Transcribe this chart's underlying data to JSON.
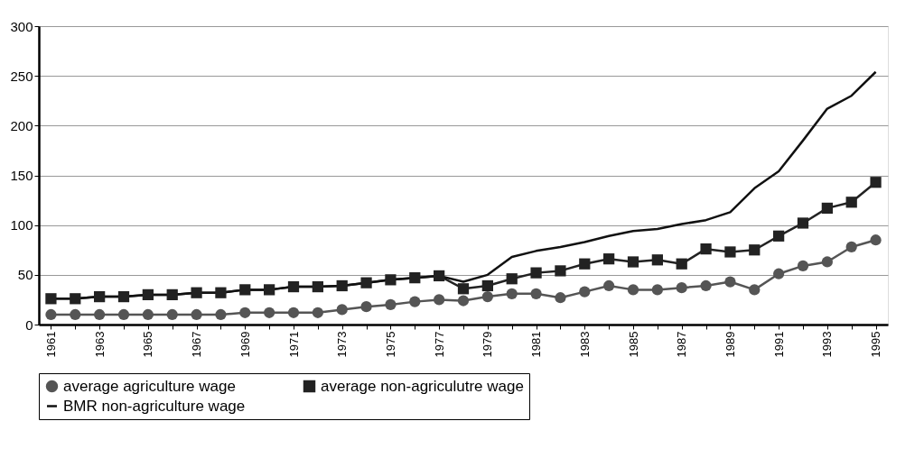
{
  "chart_data": {
    "type": "line",
    "categories": [
      "1961",
      null,
      "1963",
      null,
      "1965",
      null,
      "1967",
      null,
      "1969",
      null,
      "1971",
      null,
      "1973",
      null,
      "1975",
      null,
      "1977",
      null,
      "1979",
      null,
      "1981",
      null,
      "1983",
      null,
      "1985",
      null,
      "1987",
      null,
      "1989",
      null,
      "1991",
      null,
      "1993",
      null,
      "1995"
    ],
    "series": [
      {
        "name": "average agriculture wage",
        "color": "#555555",
        "marker": "circle",
        "values": [
          10,
          10,
          10,
          10,
          10,
          10,
          10,
          10,
          12,
          12,
          12,
          12,
          15,
          18,
          20,
          23,
          25,
          24,
          28,
          31,
          31,
          27,
          33,
          39,
          35,
          35,
          37,
          39,
          43,
          35,
          51,
          59,
          63,
          78,
          85
        ]
      },
      {
        "name": "average non-agriculutre wage",
        "color": "#222222",
        "marker": "square",
        "values": [
          26,
          26,
          28,
          28,
          30,
          30,
          32,
          32,
          35,
          35,
          38,
          38,
          39,
          42,
          45,
          47,
          49,
          36,
          39,
          46,
          52,
          54,
          61,
          66,
          63,
          65,
          61,
          76,
          73,
          75,
          89,
          102,
          117,
          123,
          143
        ]
      },
      {
        "name": "BMR non-agriculture wage",
        "color": "#111111",
        "marker": "none",
        "values": [
          26,
          26,
          28,
          28,
          30,
          30,
          32,
          32,
          35,
          35,
          38,
          38,
          39,
          42,
          45,
          47,
          49,
          43,
          50,
          68,
          74,
          78,
          83,
          89,
          94,
          96,
          101,
          105,
          113,
          137,
          154,
          185,
          217,
          230,
          254
        ]
      }
    ],
    "ylim": [
      0,
      300
    ],
    "yticks": [
      0,
      50,
      100,
      150,
      200,
      250,
      300
    ],
    "grid": "y",
    "legend": "bottom"
  }
}
